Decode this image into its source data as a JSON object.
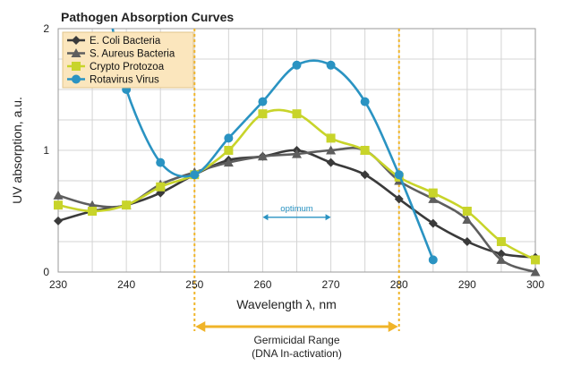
{
  "chart_data": {
    "type": "line",
    "title": "Pathogen Absorption Curves",
    "xlabel": "Wavelength λ, nm",
    "ylabel": "UV absorption, a.u.",
    "xlim": [
      230,
      300
    ],
    "ylim": [
      0,
      2
    ],
    "x_ticks": [
      230,
      240,
      250,
      260,
      270,
      280,
      290,
      300
    ],
    "y_ticks": [
      0,
      1,
      2
    ],
    "grid": true,
    "legend_position": "top-left",
    "series": [
      {
        "name": "E. Coli Bacteria",
        "color": "#3a3a3a",
        "marker": "diamond",
        "points": [
          [
            230,
            0.42
          ],
          [
            235,
            0.5
          ],
          [
            240,
            0.55
          ],
          [
            245,
            0.65
          ],
          [
            250,
            0.8
          ],
          [
            255,
            0.92
          ],
          [
            260,
            0.95
          ],
          [
            265,
            1.0
          ],
          [
            270,
            0.9
          ],
          [
            275,
            0.8
          ],
          [
            280,
            0.6
          ],
          [
            285,
            0.4
          ],
          [
            290,
            0.25
          ],
          [
            295,
            0.15
          ],
          [
            300,
            0.12
          ]
        ]
      },
      {
        "name": "S. Aureus Bacteria",
        "color": "#5e5e5e",
        "marker": "triangle",
        "points": [
          [
            230,
            0.63
          ],
          [
            235,
            0.55
          ],
          [
            240,
            0.55
          ],
          [
            245,
            0.72
          ],
          [
            250,
            0.82
          ],
          [
            255,
            0.9
          ],
          [
            260,
            0.95
          ],
          [
            265,
            0.97
          ],
          [
            270,
            1.0
          ],
          [
            275,
            1.0
          ],
          [
            280,
            0.75
          ],
          [
            285,
            0.6
          ],
          [
            290,
            0.43
          ],
          [
            295,
            0.1
          ],
          [
            300,
            0.0
          ]
        ]
      },
      {
        "name": "Crypto Protozoa",
        "color": "#c8d42a",
        "marker": "square",
        "points": [
          [
            230,
            0.55
          ],
          [
            235,
            0.5
          ],
          [
            240,
            0.55
          ],
          [
            245,
            0.7
          ],
          [
            250,
            0.8
          ],
          [
            255,
            1.0
          ],
          [
            260,
            1.3
          ],
          [
            265,
            1.3
          ],
          [
            270,
            1.1
          ],
          [
            275,
            1.0
          ],
          [
            280,
            0.78
          ],
          [
            285,
            0.65
          ],
          [
            290,
            0.5
          ],
          [
            295,
            0.25
          ],
          [
            300,
            0.1
          ]
        ]
      },
      {
        "name": "Rotavirus Virus",
        "color": "#2a93c2",
        "marker": "circle",
        "points": [
          [
            240,
            1.5
          ],
          [
            245,
            0.9
          ],
          [
            250,
            0.8
          ],
          [
            255,
            1.1
          ],
          [
            260,
            1.4
          ],
          [
            265,
            1.7
          ],
          [
            270,
            1.7
          ],
          [
            275,
            1.4
          ],
          [
            280,
            0.8
          ],
          [
            285,
            0.1
          ]
        ]
      }
    ],
    "annotations": {
      "optimum": {
        "label": "optimum",
        "from": 260,
        "to": 270,
        "y": 0.45,
        "color": "#2a93c2"
      },
      "germicidal_range": {
        "label": "Germicidal Range",
        "sublabel": "(DNA In-activation)",
        "from": 250,
        "to": 280,
        "color": "#f0b429"
      }
    }
  }
}
